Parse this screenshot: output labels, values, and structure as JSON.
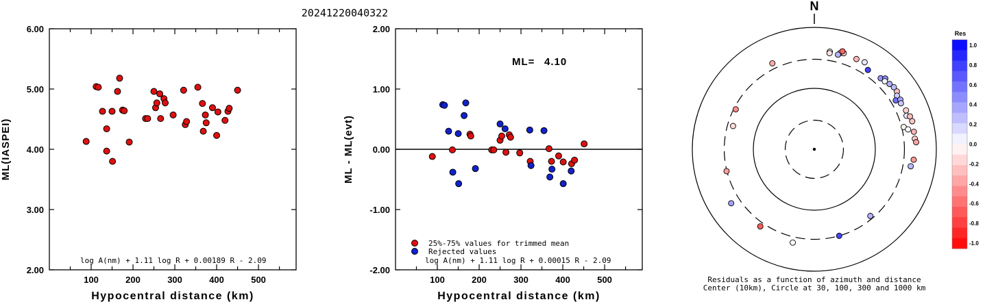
{
  "header": {
    "event_id": "20241220040322"
  },
  "chart_data": [
    {
      "type": "scatter",
      "xlabel": "Hypocentral distance (km)",
      "ylabel": "ML(IASPEI)",
      "xlim": [
        0,
        590
      ],
      "ylim": [
        2.0,
        6.0
      ],
      "x_ticks": [
        "100",
        "200",
        "300",
        "400",
        "500"
      ],
      "y_ticks": [
        "2.00",
        "3.00",
        "4.00",
        "5.00",
        "6.00"
      ],
      "formula": "log A(nm) + 1.11 log R + 0.00189 R - 2.09",
      "marker_color": "#dd1111",
      "points": [
        [
          88,
          4.13
        ],
        [
          112,
          5.04
        ],
        [
          117,
          5.03
        ],
        [
          127,
          4.63
        ],
        [
          137,
          4.34
        ],
        [
          137,
          3.97
        ],
        [
          150,
          4.63
        ],
        [
          151,
          3.8
        ],
        [
          163,
          4.96
        ],
        [
          168,
          5.18
        ],
        [
          175,
          4.65
        ],
        [
          179,
          4.64
        ],
        [
          191,
          4.12
        ],
        [
          230,
          4.51
        ],
        [
          235,
          4.51
        ],
        [
          250,
          4.96
        ],
        [
          254,
          4.69
        ],
        [
          257,
          4.77
        ],
        [
          264,
          4.92
        ],
        [
          266,
          4.51
        ],
        [
          274,
          4.84
        ],
        [
          277,
          4.77
        ],
        [
          296,
          4.57
        ],
        [
          321,
          4.98
        ],
        [
          325,
          4.41
        ],
        [
          328,
          4.46
        ],
        [
          355,
          5.03
        ],
        [
          366,
          4.76
        ],
        [
          368,
          4.3
        ],
        [
          373,
          4.57
        ],
        [
          375,
          4.44
        ],
        [
          390,
          4.69
        ],
        [
          400,
          4.23
        ],
        [
          403,
          4.62
        ],
        [
          420,
          4.48
        ],
        [
          427,
          4.63
        ],
        [
          430,
          4.68
        ],
        [
          450,
          4.98
        ]
      ]
    },
    {
      "type": "scatter",
      "xlabel": "Hypocentral distance (km)",
      "ylabel": "ML - ML(evt)",
      "xlim": [
        0,
        590
      ],
      "ylim": [
        -2.0,
        2.0
      ],
      "x_ticks": [
        "100",
        "200",
        "300",
        "400",
        "500"
      ],
      "y_ticks": [
        "-2.00",
        "-1.00",
        "0.00",
        "1.00",
        "2.00"
      ],
      "annotation_label": "ML=",
      "annotation_value": "4.10",
      "formula": "log A(nm) + 1.11 log R + 0.00015 R - 2.09",
      "legend": [
        {
          "label": "25%-75% values for trimmed mean",
          "color": "#dd1111"
        },
        {
          "label": "Rejected values",
          "color": "#1122cc"
        }
      ],
      "series": [
        {
          "name": "25%-75% values for trimmed mean",
          "color": "#dd1111",
          "points": [
            [
              88,
              -0.12
            ],
            [
              136,
              -0.01
            ],
            [
              178,
              0.25
            ],
            [
              180,
              0.22
            ],
            [
              230,
              -0.01
            ],
            [
              235,
              -0.01
            ],
            [
              250,
              0.15
            ],
            [
              254,
              0.22
            ],
            [
              264,
              -0.05
            ],
            [
              272,
              0.24
            ],
            [
              275,
              0.2
            ],
            [
              297,
              -0.06
            ],
            [
              322,
              -0.2
            ],
            [
              367,
              0.01
            ],
            [
              373,
              -0.2
            ],
            [
              390,
              -0.11
            ],
            [
              401,
              -0.21
            ],
            [
              421,
              -0.24
            ],
            [
              428,
              -0.18
            ],
            [
              451,
              0.09
            ]
          ]
        },
        {
          "name": "Rejected values",
          "color": "#1122cc",
          "points": [
            [
              113,
              0.74
            ],
            [
              117,
              0.73
            ],
            [
              127,
              0.3
            ],
            [
              137,
              -0.38
            ],
            [
              150,
              0.26
            ],
            [
              151,
              -0.57
            ],
            [
              164,
              0.56
            ],
            [
              168,
              0.77
            ],
            [
              191,
              -0.32
            ],
            [
              250,
              0.42
            ],
            [
              262,
              0.34
            ],
            [
              321,
              0.32
            ],
            [
              324,
              -0.27
            ],
            [
              355,
              0.31
            ],
            [
              369,
              -0.46
            ],
            [
              374,
              -0.33
            ],
            [
              401,
              -0.57
            ],
            [
              420,
              -0.36
            ]
          ]
        }
      ]
    },
    {
      "type": "polar-scatter",
      "north_label": "N",
      "caption_line1": "Residuals as a function of azimuth and distance",
      "caption_line2": "Center (10km), Circle at 30, 100, 300 and 1000 km",
      "rings_km": [
        30,
        100,
        300,
        1000
      ],
      "colorbar_title": "Res",
      "colorbar_labels": [
        "1.0",
        "0.8",
        "0.6",
        "0.4",
        "0.2",
        "0.0",
        "-0.2",
        "-0.4",
        "-0.6",
        "-0.8",
        "-1.0"
      ],
      "points": [
        {
          "azimuth": 9,
          "distance_km": 418,
          "res": 0.01
        },
        {
          "azimuth": 15,
          "distance_km": 430,
          "res": -0.2
        },
        {
          "azimuth": 9,
          "distance_km": 395,
          "res": -0.11
        },
        {
          "azimuth": 14,
          "distance_km": 398,
          "res": 0.3
        },
        {
          "azimuth": 17,
          "distance_km": 445,
          "res": -0.18
        },
        {
          "azimuth": 25,
          "distance_km": 430,
          "res": -0.28
        },
        {
          "azimuth": 30,
          "distance_km": 446,
          "res": 0.1
        },
        {
          "azimuth": 34,
          "distance_km": 372,
          "res": 0.74
        },
        {
          "azimuth": 43,
          "distance_km": 393,
          "res": 0.42
        },
        {
          "azimuth": 45,
          "distance_km": 440,
          "res": 0.46
        },
        {
          "azimuth": 46,
          "distance_km": 404,
          "res": 0.05
        },
        {
          "azimuth": 49,
          "distance_km": 430,
          "res": 0.31
        },
        {
          "azimuth": 52,
          "distance_km": 451,
          "res": 0.26
        },
        {
          "azimuth": 55,
          "distance_km": 450,
          "res": -0.24
        },
        {
          "azimuth": 57,
          "distance_km": 412,
          "res": 0.2
        },
        {
          "azimuth": 59,
          "distance_km": 361,
          "res": 0.56
        },
        {
          "azimuth": 60,
          "distance_km": 425,
          "res": 0.34
        },
        {
          "azimuth": 62,
          "distance_km": 405,
          "res": 0.22
        },
        {
          "azimuth": 67,
          "distance_km": 430,
          "res": -0.18
        },
        {
          "azimuth": 70,
          "distance_km": 406,
          "res": 0.08
        },
        {
          "azimuth": 71,
          "distance_km": 455,
          "res": -0.26
        },
        {
          "azimuth": 74,
          "distance_km": 467,
          "res": -0.22
        },
        {
          "azimuth": 76,
          "distance_km": 324,
          "res": -0.06
        },
        {
          "azimuth": 78,
          "distance_km": 372,
          "res": 0.01
        },
        {
          "azimuth": 80,
          "distance_km": 454,
          "res": -0.3
        },
        {
          "azimuth": 84,
          "distance_km": 454,
          "res": -0.21
        },
        {
          "azimuth": 86,
          "distance_km": 471,
          "res": -0.36
        },
        {
          "azimuth": 96,
          "distance_km": 434,
          "res": -0.4
        },
        {
          "azimuth": 100,
          "distance_km": 402,
          "res": 0.27
        },
        {
          "azimuth": 140,
          "distance_km": 268,
          "res": 0.3
        },
        {
          "azimuth": 164,
          "distance_km": 300,
          "res": 0.73
        },
        {
          "azimuth": 193,
          "distance_km": 372,
          "res": 0.02
        },
        {
          "azimuth": 215,
          "distance_km": 350,
          "res": -0.63
        },
        {
          "azimuth": 237,
          "distance_km": 422,
          "res": 0.37
        },
        {
          "azimuth": 256,
          "distance_km": 304,
          "res": -0.38
        },
        {
          "azimuth": 286,
          "distance_km": 243,
          "res": -0.14
        },
        {
          "azimuth": 297,
          "distance_km": 279,
          "res": -0.45
        },
        {
          "azimuth": 334,
          "distance_km": 371,
          "res": -0.33
        },
        {
          "azimuth": 16,
          "distance_km": 470,
          "res": -0.6
        }
      ]
    }
  ]
}
